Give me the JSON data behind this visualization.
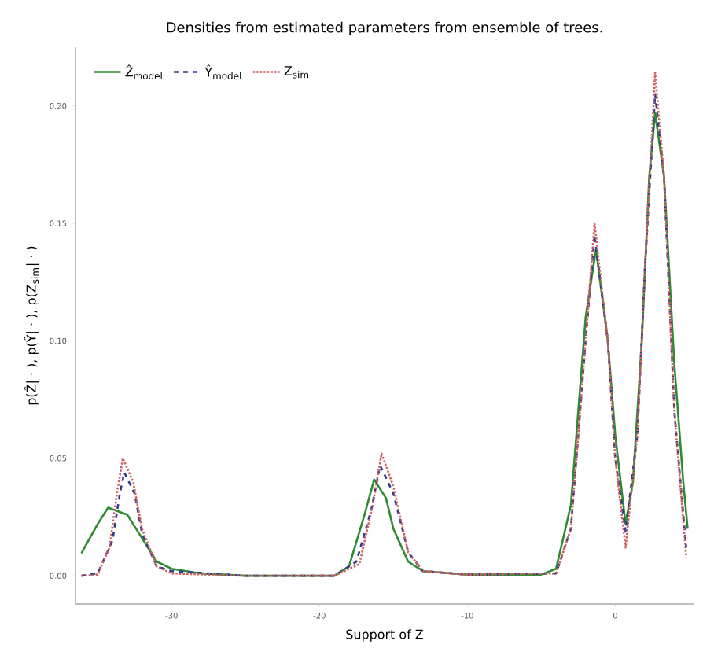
{
  "chart_data": {
    "type": "line",
    "title": "Densities from estimated parameters from ensemble of trees.",
    "xlabel": "Support of Z",
    "ylabel": "p(Ẑ| · ), p(Ŷ| · ), p(Z$_{sim}$| · )",
    "xlim": [
      -36.5,
      5.3
    ],
    "ylim": [
      -0.012,
      0.225
    ],
    "xticks": [
      -30,
      -20,
      -10,
      0
    ],
    "yticks": [
      {
        "value": 0,
        "label": "0.00"
      },
      {
        "value": 0.05,
        "label": "0.05"
      },
      {
        "value": 0.1,
        "label": "0.10"
      },
      {
        "value": 0.15,
        "label": "0.15"
      },
      {
        "value": 0.2,
        "label": "0.20"
      }
    ],
    "grid": false,
    "legend": "top left",
    "series": [
      {
        "name": "Ẑ$_{model}$",
        "color": "#2e8b2e",
        "line_style": "solid",
        "x": [
          -36.1,
          -35,
          -34.3,
          -33,
          -32,
          -31,
          -30,
          -28,
          -25,
          -19,
          -18,
          -17,
          -16.3,
          -15.5,
          -15,
          -14,
          -13,
          -10,
          -5,
          -4,
          -3,
          -2.5,
          -2,
          -1.3,
          -0.5,
          0,
          0.7,
          1.2,
          1.8,
          2.3,
          2.7,
          3.3,
          4,
          4.6,
          4.9
        ],
        "values": [
          0.0096,
          0.022,
          0.029,
          0.026,
          0.016,
          0.006,
          0.003,
          0.001,
          0,
          0,
          0.004,
          0.025,
          0.041,
          0.033,
          0.02,
          0.006,
          0.002,
          0.0005,
          0.0005,
          0.003,
          0.03,
          0.07,
          0.11,
          0.139,
          0.1,
          0.06,
          0.022,
          0.04,
          0.1,
          0.17,
          0.197,
          0.17,
          0.09,
          0.04,
          0.02
        ]
      },
      {
        "name": "Ŷ$_{model}$",
        "color": "#2e3a8c",
        "line_style": "dashed",
        "x": [
          -36.1,
          -35,
          -34,
          -33.5,
          -33.2,
          -32.5,
          -32,
          -31,
          -30,
          -25,
          -19,
          -17.5,
          -16.5,
          -15.9,
          -15,
          -14,
          -13,
          -10,
          -4,
          -3,
          -2,
          -1.4,
          -0.5,
          0,
          0.7,
          1.5,
          2,
          2.7,
          3.3,
          4,
          4.8
        ],
        "values": [
          0,
          0.001,
          0.015,
          0.035,
          0.044,
          0.035,
          0.018,
          0.004,
          0.002,
          0,
          0,
          0.006,
          0.028,
          0.047,
          0.035,
          0.01,
          0.002,
          0.0005,
          0.001,
          0.02,
          0.1,
          0.145,
          0.1,
          0.05,
          0.019,
          0.06,
          0.13,
          0.205,
          0.17,
          0.07,
          0.012
        ]
      },
      {
        "name": "Z$_{sim}$",
        "color": "#d06060",
        "line_style": "dotted",
        "x": [
          -36.1,
          -35,
          -34.2,
          -33.7,
          -33.3,
          -32.6,
          -32,
          -31,
          -30,
          -25,
          -19,
          -17.3,
          -16.4,
          -15.8,
          -15,
          -14,
          -13,
          -10,
          -4,
          -3,
          -2,
          -1.4,
          -0.5,
          0,
          0.7,
          1.5,
          2,
          2.7,
          3.3,
          4,
          4.8
        ],
        "values": [
          0,
          0.0005,
          0.012,
          0.035,
          0.05,
          0.04,
          0.02,
          0.004,
          0.001,
          0,
          0,
          0.005,
          0.03,
          0.052,
          0.038,
          0.01,
          0.002,
          0.0005,
          0.001,
          0.02,
          0.1,
          0.15,
          0.1,
          0.05,
          0.012,
          0.06,
          0.13,
          0.214,
          0.17,
          0.07,
          0.008
        ]
      }
    ]
  }
}
